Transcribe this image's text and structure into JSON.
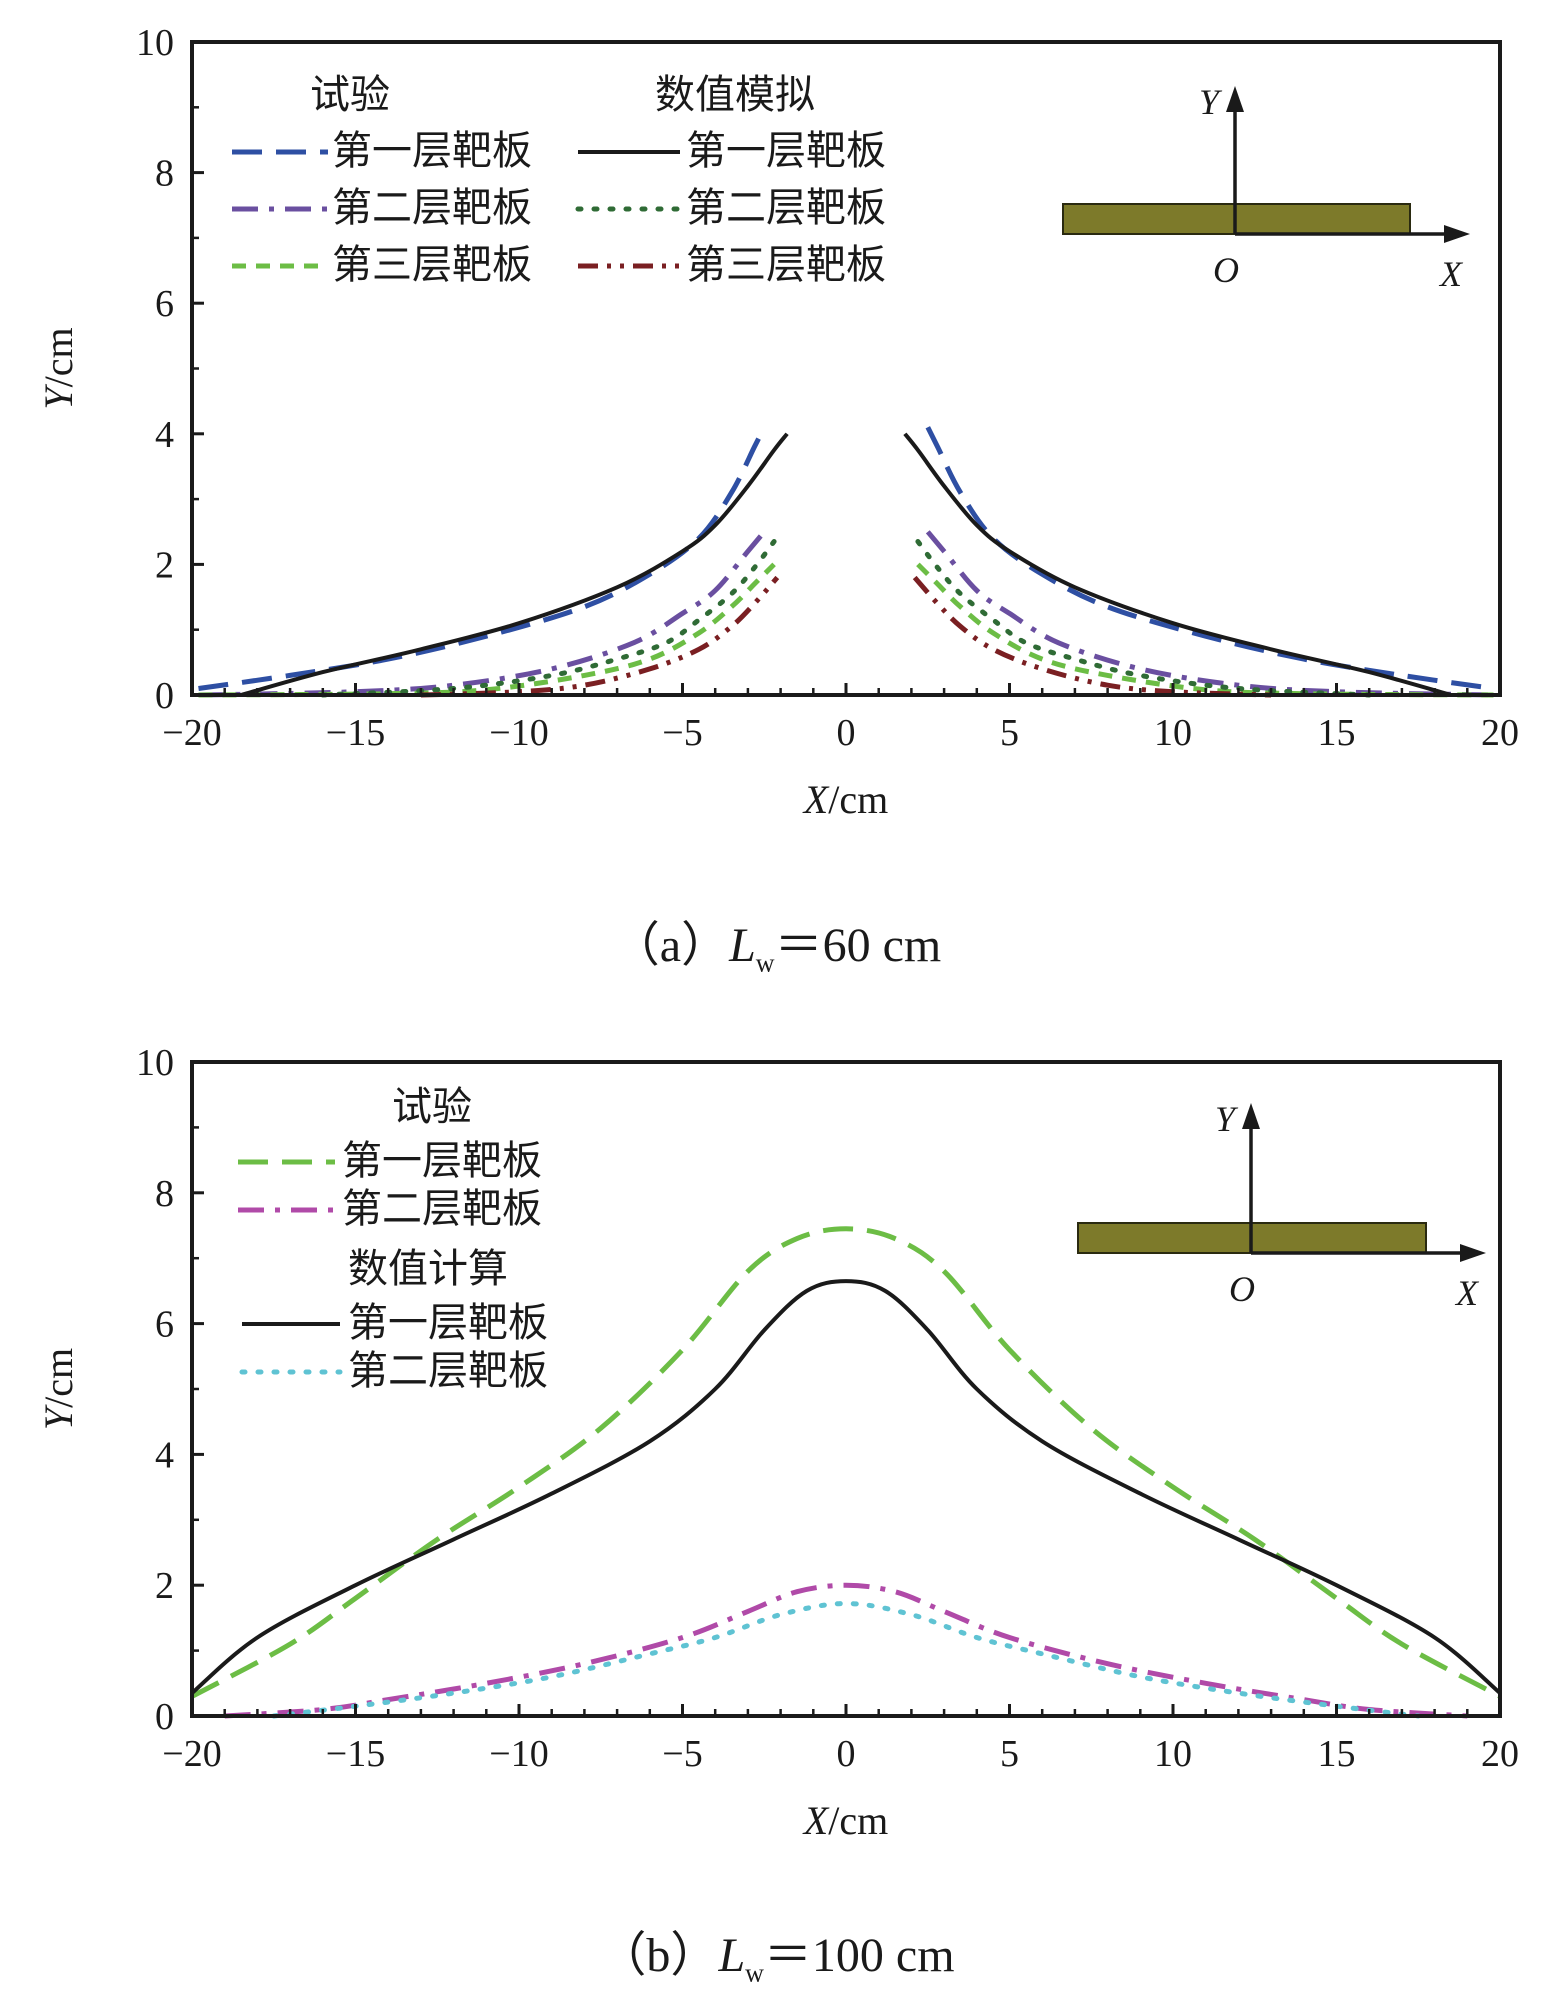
{
  "chart_data": [
    {
      "type": "line",
      "caption": {
        "prefix": "（a）",
        "var": "L",
        "sub": "w",
        "rest": "＝60 cm"
      },
      "xlabel": {
        "var": "X",
        "unit": "/cm"
      },
      "ylabel": {
        "var": "Y",
        "unit": "/cm"
      },
      "xlim": [
        -20,
        20
      ],
      "ylim": [
        0,
        10
      ],
      "xticks": [
        "−20",
        "−15",
        "−10",
        "−5",
        "0",
        "5",
        "10",
        "15",
        "20"
      ],
      "yticks": [
        "0",
        "2",
        "4",
        "6",
        "8",
        "10"
      ],
      "legend": {
        "groups": [
          {
            "title": "试验",
            "entries": [
              "第一层靶板",
              "第二层靶板",
              "第三层靶板"
            ]
          },
          {
            "title": "数值模拟",
            "entries": [
              "第一层靶板",
              "第二层靶板",
              "第三层靶板"
            ]
          }
        ]
      },
      "inset": {
        "y": "Y",
        "x": "X",
        "o": "O"
      },
      "series": [
        {
          "name": "试验 第一层靶板",
          "color": "#2e4fa3",
          "dash": "dash",
          "branches": [
            [
              [
                -19.8,
                0.1
              ],
              [
                -17,
                0.3
              ],
              [
                -14,
                0.55
              ],
              [
                -11,
                0.9
              ],
              [
                -8,
                1.35
              ],
              [
                -6,
                1.85
              ],
              [
                -4.5,
                2.4
              ],
              [
                -3.5,
                3.1
              ],
              [
                -2.8,
                3.8
              ],
              [
                -2.5,
                4.1
              ]
            ],
            [
              [
                2.5,
                4.1
              ],
              [
                2.8,
                3.8
              ],
              [
                3.5,
                3.1
              ],
              [
                4.5,
                2.4
              ],
              [
                6,
                1.85
              ],
              [
                8,
                1.35
              ],
              [
                11,
                0.9
              ],
              [
                14,
                0.55
              ],
              [
                17,
                0.3
              ],
              [
                19.8,
                0.1
              ]
            ]
          ]
        },
        {
          "name": "试验 第二层靶板",
          "color": "#6a4fa0",
          "dash": "dashdot",
          "branches": [
            [
              [
                -19.8,
                0
              ],
              [
                -15,
                0.05
              ],
              [
                -12,
                0.15
              ],
              [
                -9,
                0.4
              ],
              [
                -6.5,
                0.8
              ],
              [
                -5,
                1.25
              ],
              [
                -4,
                1.6
              ],
              [
                -3,
                2.2
              ],
              [
                -2.5,
                2.5
              ]
            ],
            [
              [
                2.5,
                2.5
              ],
              [
                3,
                2.2
              ],
              [
                4,
                1.6
              ],
              [
                5,
                1.25
              ],
              [
                6.5,
                0.8
              ],
              [
                9,
                0.4
              ],
              [
                12,
                0.15
              ],
              [
                15,
                0.05
              ],
              [
                19.8,
                0
              ]
            ]
          ]
        },
        {
          "name": "试验 第三层靶板",
          "color": "#6cbd45",
          "dash": "shortdash",
          "branches": [
            [
              [
                -19.8,
                0
              ],
              [
                -14,
                0.02
              ],
              [
                -11,
                0.08
              ],
              [
                -8,
                0.3
              ],
              [
                -6,
                0.55
              ],
              [
                -4.5,
                0.95
              ],
              [
                -3.5,
                1.35
              ],
              [
                -2.8,
                1.7
              ],
              [
                -2.2,
                2.0
              ]
            ],
            [
              [
                2.2,
                2.0
              ],
              [
                2.8,
                1.7
              ],
              [
                3.5,
                1.35
              ],
              [
                4.5,
                0.95
              ],
              [
                6,
                0.55
              ],
              [
                8,
                0.3
              ],
              [
                11,
                0.08
              ],
              [
                14,
                0.02
              ],
              [
                19.8,
                0
              ]
            ]
          ]
        },
        {
          "name": "数值模拟 第一层靶板",
          "color": "#1a1a1a",
          "dash": "solid",
          "branches": [
            [
              [
                -18.5,
                0
              ],
              [
                -16,
                0.35
              ],
              [
                -13,
                0.7
              ],
              [
                -10,
                1.1
              ],
              [
                -7,
                1.65
              ],
              [
                -5,
                2.2
              ],
              [
                -4,
                2.6
              ],
              [
                -3,
                3.2
              ],
              [
                -2.2,
                3.75
              ],
              [
                -1.8,
                4.0
              ]
            ],
            [
              [
                1.8,
                4.0
              ],
              [
                2.2,
                3.75
              ],
              [
                3,
                3.2
              ],
              [
                4,
                2.6
              ],
              [
                5,
                2.2
              ],
              [
                7,
                1.65
              ],
              [
                10,
                1.1
              ],
              [
                13,
                0.7
              ],
              [
                16,
                0.35
              ],
              [
                18.5,
                0
              ]
            ]
          ]
        },
        {
          "name": "数值模拟 第二层靶板",
          "color": "#2f6b35",
          "dash": "dot",
          "branches": [
            [
              [
                -16,
                0
              ],
              [
                -12,
                0.1
              ],
              [
                -9,
                0.3
              ],
              [
                -7,
                0.55
              ],
              [
                -5.5,
                0.8
              ],
              [
                -4.5,
                1.15
              ],
              [
                -3.5,
                1.55
              ],
              [
                -2.8,
                1.95
              ],
              [
                -2.2,
                2.35
              ]
            ],
            [
              [
                2.2,
                2.35
              ],
              [
                2.8,
                1.95
              ],
              [
                3.5,
                1.55
              ],
              [
                4.5,
                1.15
              ],
              [
                5.5,
                0.8
              ],
              [
                7,
                0.55
              ],
              [
                9,
                0.3
              ],
              [
                12,
                0.1
              ],
              [
                16,
                0
              ]
            ]
          ]
        },
        {
          "name": "数值模拟 第三层靶板",
          "color": "#7a1f22",
          "dash": "dashdotdot",
          "branches": [
            [
              [
                -13,
                0
              ],
              [
                -10,
                0.05
              ],
              [
                -8,
                0.15
              ],
              [
                -6,
                0.4
              ],
              [
                -4.5,
                0.7
              ],
              [
                -3.5,
                1.05
              ],
              [
                -2.8,
                1.4
              ],
              [
                -2.1,
                1.8
              ]
            ],
            [
              [
                2.1,
                1.8
              ],
              [
                2.8,
                1.4
              ],
              [
                3.5,
                1.05
              ],
              [
                4.5,
                0.7
              ],
              [
                6,
                0.4
              ],
              [
                8,
                0.15
              ],
              [
                10,
                0.05
              ],
              [
                13,
                0
              ]
            ]
          ]
        }
      ]
    },
    {
      "type": "line",
      "caption": {
        "prefix": "（b）",
        "var": "L",
        "sub": "w",
        "rest": "＝100 cm"
      },
      "xlabel": {
        "var": "X",
        "unit": "/cm"
      },
      "ylabel": {
        "var": "Y",
        "unit": "/cm"
      },
      "xlim": [
        -20,
        20
      ],
      "ylim": [
        0,
        10
      ],
      "xticks": [
        "−20",
        "−15",
        "−10",
        "−5",
        "0",
        "5",
        "10",
        "15",
        "20"
      ],
      "yticks": [
        "0",
        "2",
        "4",
        "6",
        "8",
        "10"
      ],
      "legend": {
        "groups": [
          {
            "title": "试验",
            "entries": [
              "第一层靶板",
              "第二层靶板"
            ]
          },
          {
            "title": "数值计算",
            "entries": [
              "第一层靶板",
              "第二层靶板"
            ]
          }
        ]
      },
      "inset": {
        "y": "Y",
        "x": "X",
        "o": "O"
      },
      "series": [
        {
          "name": "试验 第一层靶板",
          "color": "#6cbd45",
          "dash": "dash",
          "branches": [
            [
              [
                -20,
                0.3
              ],
              [
                -17,
                1.1
              ],
              [
                -15,
                1.8
              ],
              [
                -12.5,
                2.7
              ],
              [
                -10,
                3.5
              ],
              [
                -7.5,
                4.4
              ],
              [
                -5,
                5.6
              ],
              [
                -3,
                6.8
              ],
              [
                -1.5,
                7.3
              ],
              [
                0,
                7.45
              ],
              [
                1.5,
                7.3
              ],
              [
                3,
                6.8
              ],
              [
                5,
                5.6
              ],
              [
                7.5,
                4.4
              ],
              [
                10,
                3.5
              ],
              [
                12.5,
                2.7
              ],
              [
                15,
                1.8
              ],
              [
                17,
                1.1
              ],
              [
                20,
                0.3
              ]
            ]
          ]
        },
        {
          "name": "试验 第二层靶板",
          "color": "#b04aa8",
          "dash": "dashdot",
          "branches": [
            [
              [
                -19,
                0
              ],
              [
                -16,
                0.1
              ],
              [
                -14,
                0.25
              ],
              [
                -11,
                0.5
              ],
              [
                -8,
                0.8
              ],
              [
                -5,
                1.2
              ],
              [
                -3,
                1.6
              ],
              [
                -1.5,
                1.9
              ],
              [
                0,
                2.0
              ],
              [
                1.5,
                1.9
              ],
              [
                3,
                1.6
              ],
              [
                5,
                1.2
              ],
              [
                8,
                0.8
              ],
              [
                11,
                0.5
              ],
              [
                14,
                0.25
              ],
              [
                16,
                0.1
              ],
              [
                19,
                0
              ]
            ]
          ]
        },
        {
          "name": "数值计算 第一层靶板",
          "color": "#1a1a1a",
          "dash": "solid",
          "branches": [
            [
              [
                -20,
                0.35
              ],
              [
                -18,
                1.2
              ],
              [
                -15,
                2.0
              ],
              [
                -12,
                2.7
              ],
              [
                -9,
                3.4
              ],
              [
                -6,
                4.2
              ],
              [
                -4,
                5.0
              ],
              [
                -2.5,
                5.9
              ],
              [
                -1.2,
                6.5
              ],
              [
                0,
                6.65
              ],
              [
                1.2,
                6.5
              ],
              [
                2.5,
                5.9
              ],
              [
                4,
                5.0
              ],
              [
                6,
                4.2
              ],
              [
                9,
                3.4
              ],
              [
                12,
                2.7
              ],
              [
                15,
                2.0
              ],
              [
                18,
                1.2
              ],
              [
                20,
                0.35
              ]
            ]
          ]
        },
        {
          "name": "数值计算 第二层靶板",
          "color": "#5fc3d3",
          "dash": "dot",
          "branches": [
            [
              [
                -17.5,
                0
              ],
              [
                -15,
                0.15
              ],
              [
                -12,
                0.35
              ],
              [
                -9,
                0.6
              ],
              [
                -6,
                0.95
              ],
              [
                -4,
                1.2
              ],
              [
                -2,
                1.55
              ],
              [
                0,
                1.72
              ],
              [
                2,
                1.55
              ],
              [
                4,
                1.2
              ],
              [
                6,
                0.95
              ],
              [
                9,
                0.6
              ],
              [
                12,
                0.35
              ],
              [
                15,
                0.15
              ],
              [
                17.5,
                0
              ]
            ]
          ]
        }
      ]
    }
  ]
}
